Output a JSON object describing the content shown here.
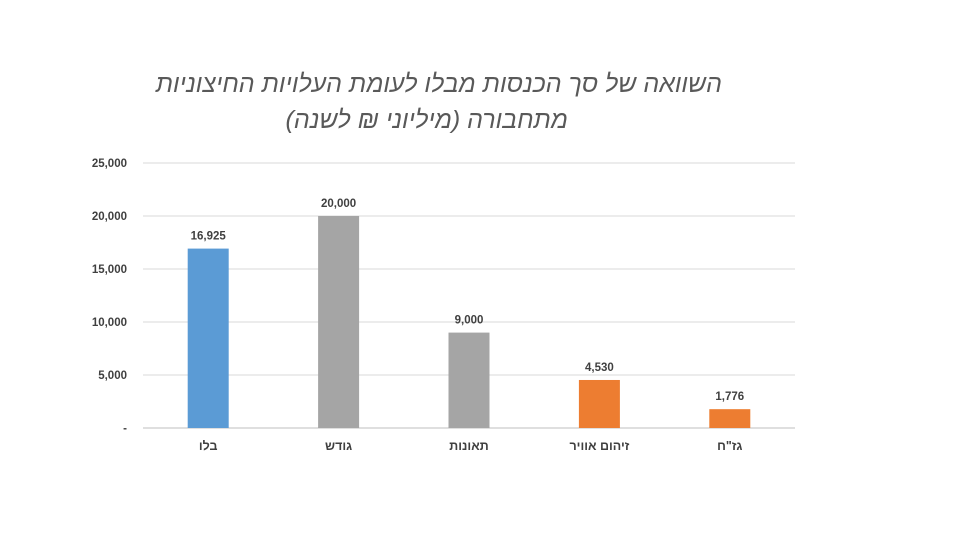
{
  "chart_data": {
    "type": "bar",
    "title": "השוואה של סך הכנסות מבלו לעומת העלויות החיצוניות",
    "subtitle": "מתחבורה (מיליוני ₪ לשנה)",
    "categories": [
      "בלו",
      "גודש",
      "תאונות",
      "זיהום אוויר",
      "גז\"ח"
    ],
    "values": [
      16925,
      20000,
      9000,
      4530,
      1776
    ],
    "data_labels": [
      "16,925",
      "20,000",
      "9,000",
      "4,530",
      "1,776"
    ],
    "colors": [
      "#5b9bd5",
      "#a5a5a5",
      "#a5a5a5",
      "#ed7d31",
      "#ed7d31"
    ],
    "ylim": [
      0,
      25000
    ],
    "yticks": [
      0,
      5000,
      10000,
      15000,
      20000,
      25000
    ],
    "ytick_labels": [
      "-",
      "5,000",
      "10,000",
      "15,000",
      "20,000",
      "25,000"
    ],
    "grid": true,
    "legend": "none",
    "xlabel": "",
    "ylabel": ""
  }
}
